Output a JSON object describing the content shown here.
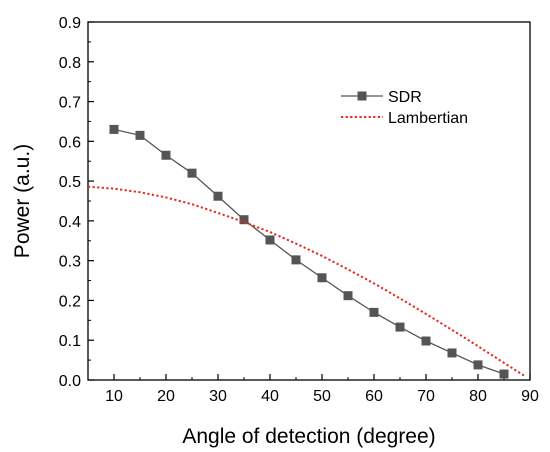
{
  "chart_data": {
    "type": "line",
    "xlabel": "Angle of detection (degree)",
    "ylabel": "Power (a.u.)",
    "xlim": [
      5,
      90
    ],
    "ylim": [
      0,
      0.9
    ],
    "xticks": [
      10,
      20,
      30,
      40,
      50,
      60,
      70,
      80,
      90
    ],
    "yticks": [
      0.0,
      0.1,
      0.2,
      0.3,
      0.4,
      0.5,
      0.6,
      0.7,
      0.8,
      0.9
    ],
    "xtick_labels": [
      "10",
      "20",
      "30",
      "40",
      "50",
      "60",
      "70",
      "80",
      "90"
    ],
    "ytick_labels": [
      "0.0",
      "0.1",
      "0.2",
      "0.3",
      "0.4",
      "0.5",
      "0.6",
      "0.7",
      "0.8",
      "0.9"
    ],
    "grid": false,
    "legend_position": "top-right",
    "series": [
      {
        "name": "SDR",
        "style": "solid-line-square-markers",
        "color": "#555555",
        "x": [
          10,
          15,
          20,
          25,
          30,
          35,
          40,
          45,
          50,
          55,
          60,
          65,
          70,
          75,
          80,
          85
        ],
        "y": [
          0.63,
          0.615,
          0.565,
          0.52,
          0.462,
          0.403,
          0.352,
          0.302,
          0.257,
          0.212,
          0.17,
          0.133,
          0.098,
          0.068,
          0.038,
          0.015
        ]
      },
      {
        "name": "Lambertian",
        "style": "dotted-line",
        "color": "#e8281e",
        "x": [
          5,
          10,
          15,
          20,
          25,
          30,
          35,
          40,
          45,
          50,
          55,
          60,
          65,
          70,
          75,
          80,
          85,
          89
        ],
        "y": [
          0.486,
          0.481,
          0.472,
          0.459,
          0.442,
          0.42,
          0.397,
          0.372,
          0.343,
          0.312,
          0.278,
          0.243,
          0.205,
          0.166,
          0.126,
          0.085,
          0.043,
          0.01
        ]
      }
    ]
  }
}
